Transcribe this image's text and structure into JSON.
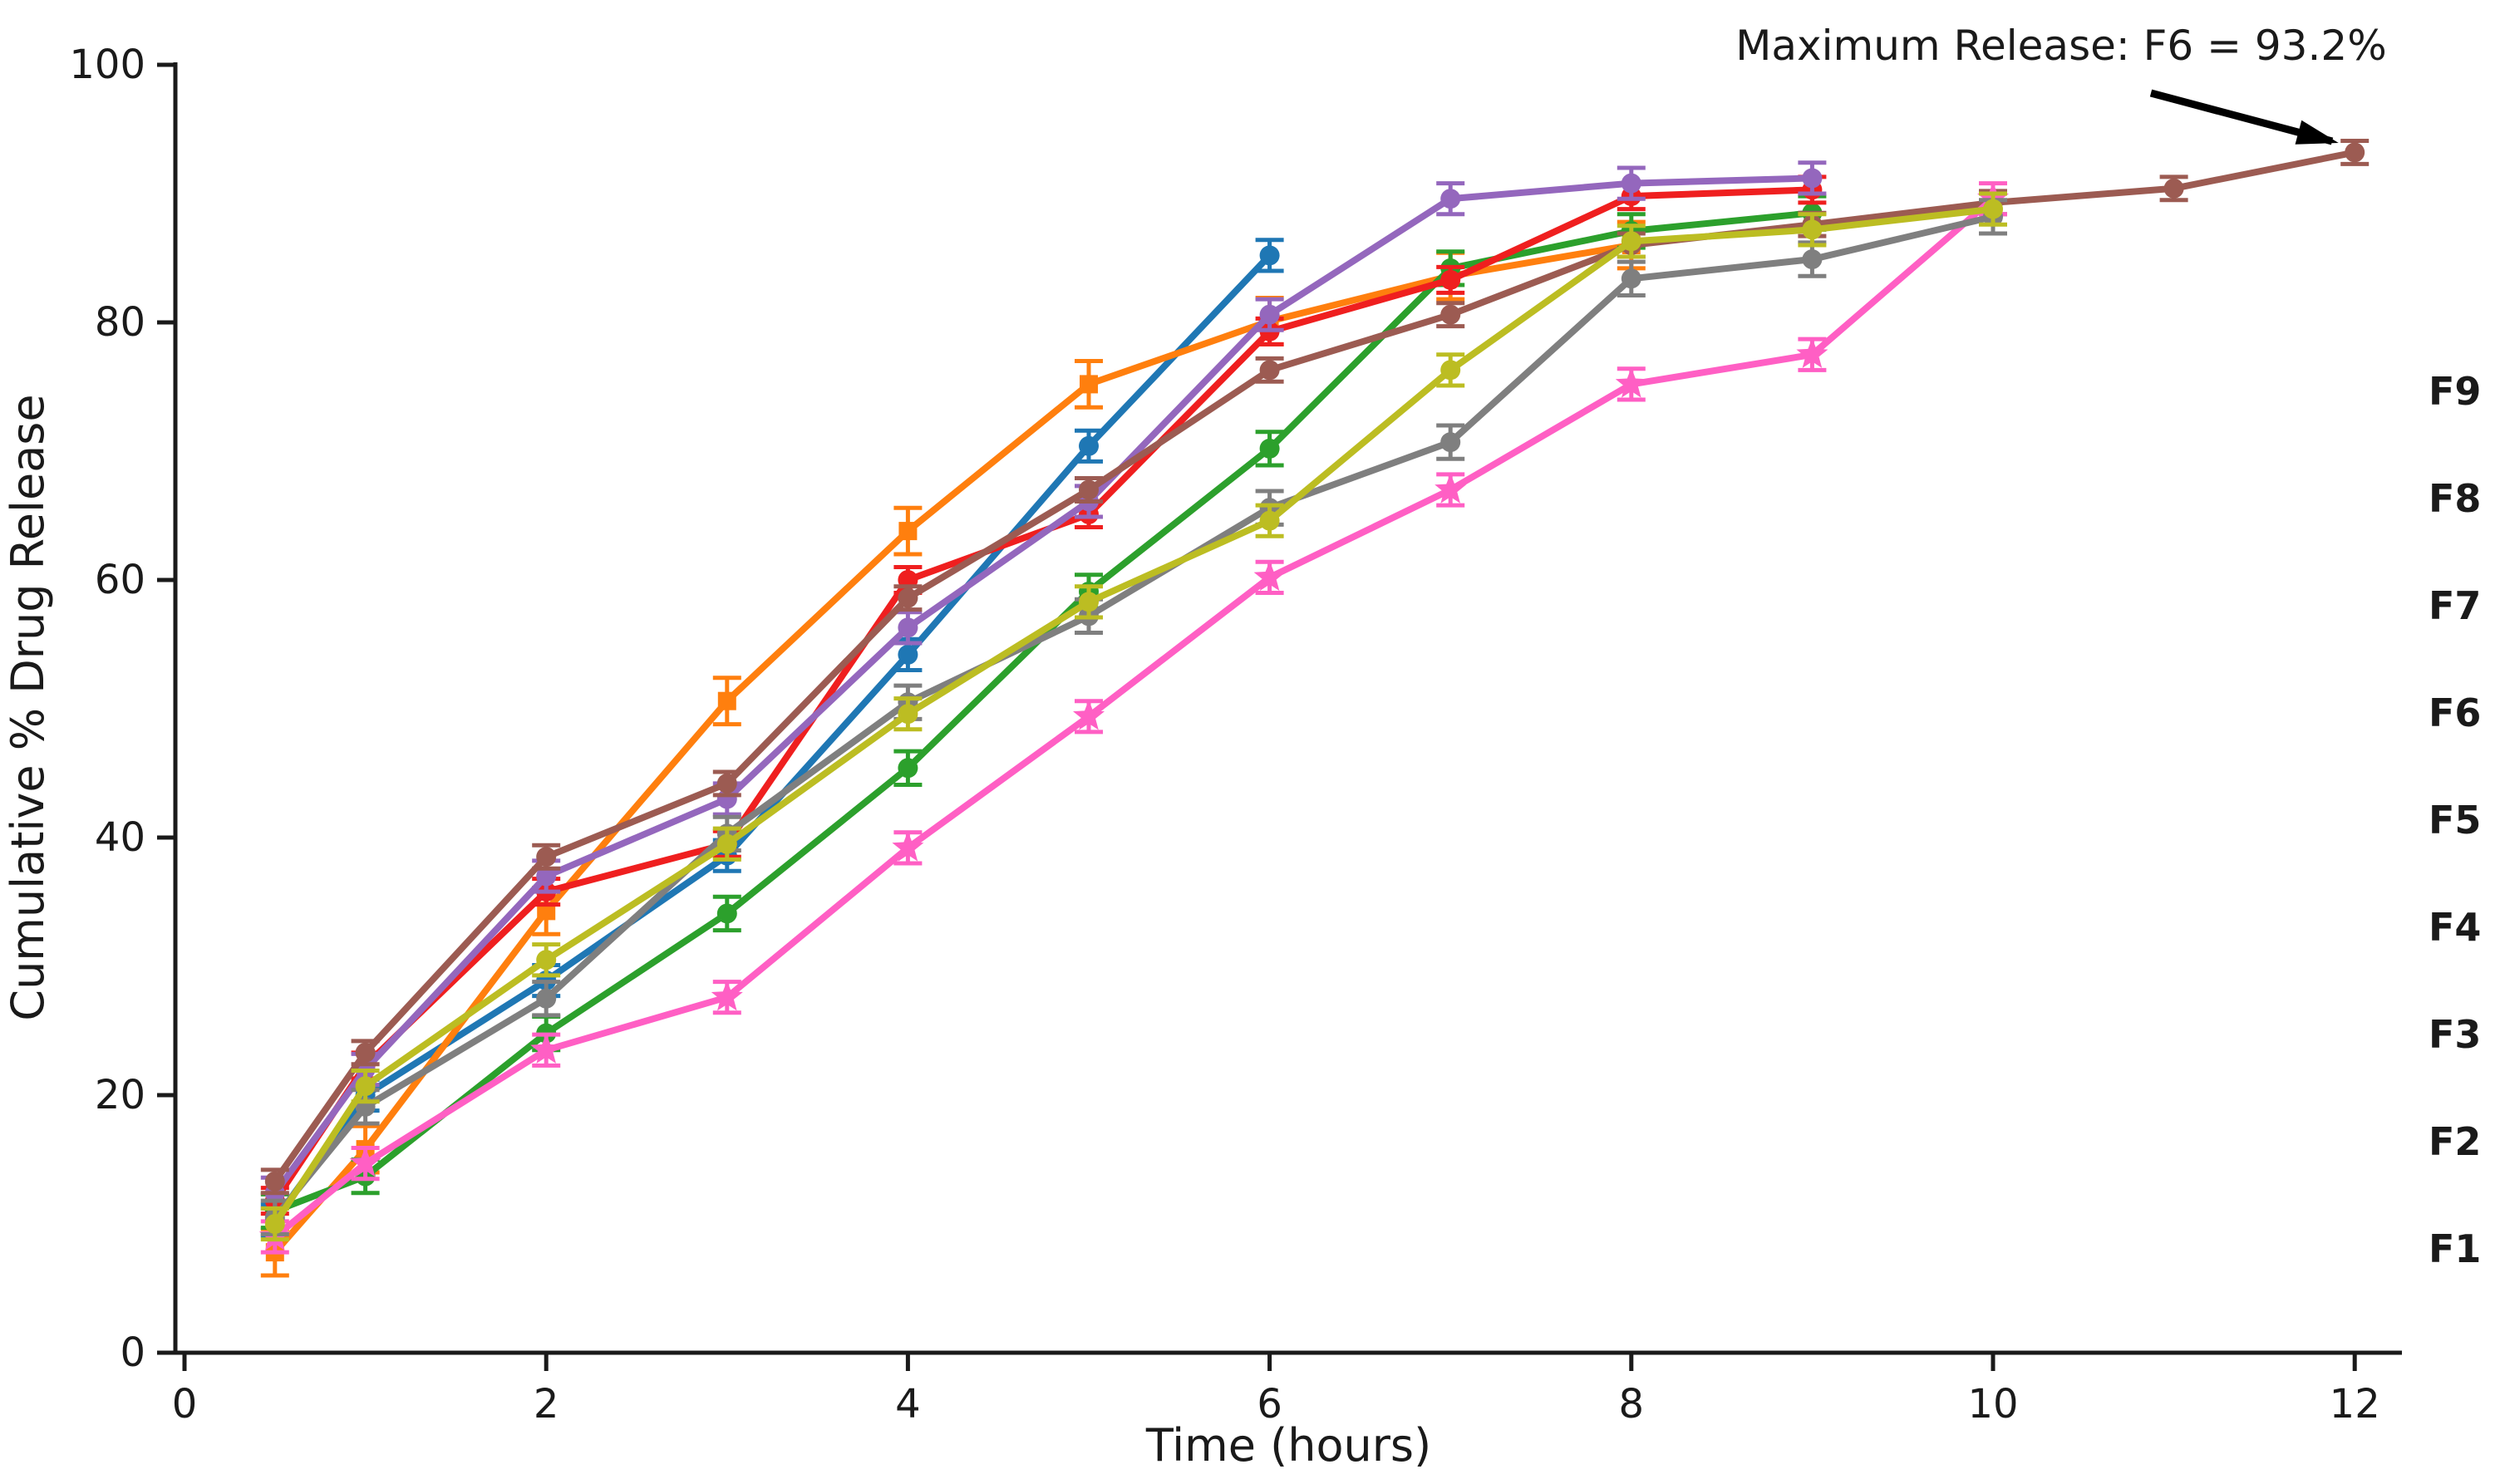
{
  "figure": {
    "xlabel": "Time (hours)",
    "ylabel": "Cumulative % Drug Release",
    "annotation_text": "Maximum Release: F6 = 93.2%"
  },
  "chart_data": {
    "type": "line",
    "title": "",
    "xlabel": "Time (hours)",
    "ylabel": "Cumulative % Drug Release",
    "x": [
      0.5,
      1,
      2,
      3,
      4,
      5,
      6,
      7,
      8,
      9,
      10,
      11,
      12
    ],
    "x_ticks": [
      0,
      2,
      4,
      6,
      8,
      10,
      12
    ],
    "y_ticks": [
      0,
      20,
      40,
      60,
      80,
      100
    ],
    "xlim": [
      -0.05,
      12.3
    ],
    "ylim": [
      0,
      100
    ],
    "grid": false,
    "error_bars": true,
    "legend_position": "right-margin",
    "legend_order": [
      "F9",
      "F8",
      "F7",
      "F6",
      "F5",
      "F4",
      "F3",
      "F2",
      "F1"
    ],
    "annotation": {
      "text": "Maximum Release: F6 = 93.2%",
      "points_to": {
        "series": "F6",
        "x": 12,
        "y": 93.2
      }
    },
    "series": [
      {
        "name": "F1",
        "color": "#1f77b4",
        "marker": "circle",
        "err": 1.2,
        "values": [
          10.3,
          20.0,
          28.9,
          38.6,
          54.2,
          70.4,
          85.2
        ]
      },
      {
        "name": "F2",
        "color": "#ff7f0e",
        "marker": "square",
        "err": 1.8,
        "values": [
          7.8,
          15.8,
          34.3,
          50.6,
          63.8,
          75.2,
          80.1,
          83.6,
          86.0
        ]
      },
      {
        "name": "F3",
        "color": "#2ca02c",
        "marker": "circle",
        "err": 1.3,
        "values": [
          11.0,
          13.7,
          24.8,
          34.1,
          45.4,
          59.1,
          70.2,
          84.2,
          87.1,
          88.5
        ]
      },
      {
        "name": "F4",
        "color": "#ef1f1f",
        "marker": "circle",
        "err": 1.0,
        "values": [
          11.8,
          22.3,
          35.8,
          39.5,
          60.0,
          65.1,
          79.3,
          83.3,
          89.8,
          90.3
        ]
      },
      {
        "name": "F5",
        "color": "#9467bd",
        "marker": "circle",
        "err": 1.2,
        "values": [
          12.4,
          22.0,
          37.0,
          43.0,
          56.3,
          66.1,
          80.6,
          89.6,
          90.8,
          91.2
        ]
      },
      {
        "name": "F6",
        "color": "#9c5b52",
        "marker": "circle",
        "err": 0.9,
        "values": [
          13.3,
          23.3,
          38.5,
          44.2,
          58.6,
          67.0,
          76.3,
          80.6,
          86.0,
          87.6,
          89.3,
          90.4,
          93.2
        ]
      },
      {
        "name": "F7",
        "color": "#ff5fc4",
        "marker": "star",
        "err": 1.2,
        "values": [
          9.0,
          14.7,
          23.5,
          27.6,
          39.2,
          49.4,
          60.2,
          67.0,
          75.2,
          77.5,
          89.6
        ]
      },
      {
        "name": "F8",
        "color": "#7f7f7f",
        "marker": "circle",
        "err": 1.3,
        "values": [
          10.5,
          19.1,
          27.5,
          40.3,
          50.5,
          57.2,
          65.6,
          70.7,
          83.4,
          84.9,
          88.2
        ]
      },
      {
        "name": "F9",
        "color": "#bcbd22",
        "marker": "circle",
        "err": 1.2,
        "values": [
          10.0,
          20.7,
          30.5,
          39.5,
          49.6,
          58.3,
          64.6,
          76.3,
          86.3,
          87.2,
          88.8
        ]
      }
    ]
  }
}
